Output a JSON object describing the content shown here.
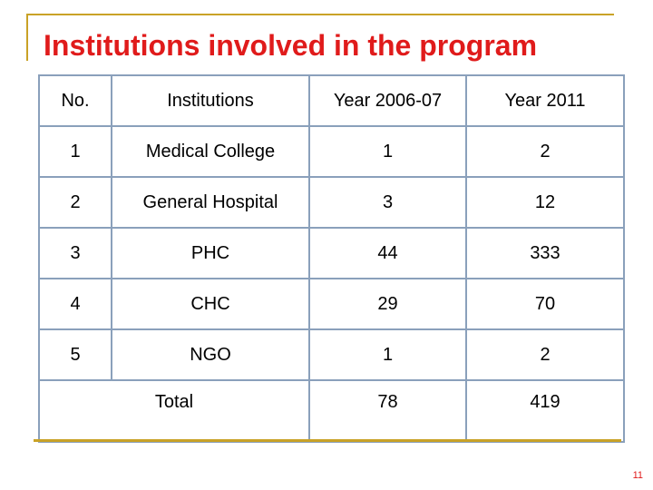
{
  "slide": {
    "title": "Institutions involved in the program",
    "page_number": "11"
  },
  "table": {
    "headers": [
      "No.",
      "Institutions",
      "Year 2006-07",
      "Year 2011"
    ],
    "rows": [
      {
        "no": "1",
        "institution": "Medical College",
        "year_2006_07": "1",
        "year_2011": "2"
      },
      {
        "no": "2",
        "institution": "General Hospital",
        "year_2006_07": "3",
        "year_2011": "12"
      },
      {
        "no": "3",
        "institution": "PHC",
        "year_2006_07": "44",
        "year_2011": "333"
      },
      {
        "no": "4",
        "institution": "CHC",
        "year_2006_07": "29",
        "year_2011": "70"
      },
      {
        "no": "5",
        "institution": "NGO",
        "year_2006_07": "1",
        "year_2011": "2"
      }
    ],
    "total": {
      "label": "Total",
      "year_2006_07": "78",
      "year_2011": "419"
    }
  },
  "colors": {
    "title": "#e01b1b",
    "frame": "#c9a227",
    "table_border": "#8aa0bb"
  }
}
